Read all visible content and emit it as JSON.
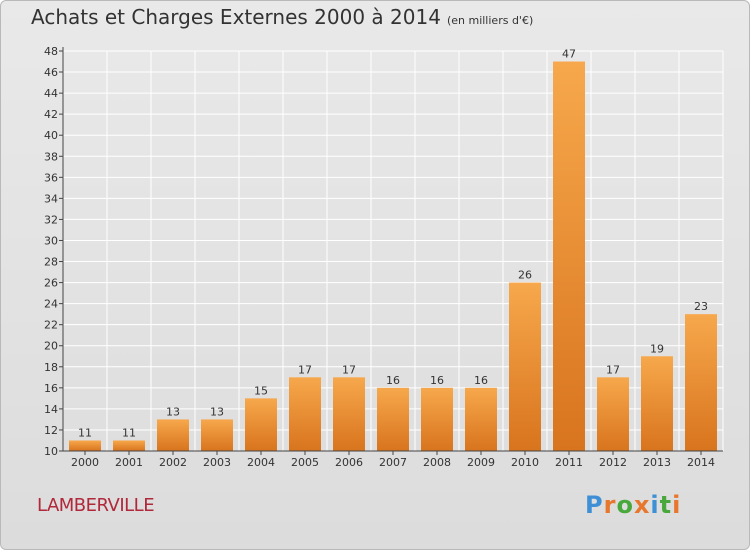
{
  "title": "Achats et Charges Externes 2000 à 2014",
  "subtitle": "(en milliers d'€)",
  "place": "LAMBERVILLE",
  "logo": {
    "text": "Proxiti",
    "letters": [
      "P",
      "r",
      "o",
      "x",
      "i",
      "t",
      "i"
    ],
    "colors": [
      "#3e8fd6",
      "#e8772e",
      "#49a83b",
      "#e8772e",
      "#3e8fd6",
      "#49a83b",
      "#e8772e"
    ]
  },
  "colors": {
    "bar_light": "#f7a84c",
    "bar_dark": "#d8741e",
    "grid": "#ffffff",
    "axis": "#444444"
  },
  "chart_data": {
    "type": "bar",
    "categories": [
      "2000",
      "2001",
      "2002",
      "2003",
      "2004",
      "2005",
      "2006",
      "2007",
      "2008",
      "2009",
      "2010",
      "2011",
      "2012",
      "2013",
      "2014"
    ],
    "values": [
      11,
      11,
      13,
      13,
      15,
      17,
      17,
      16,
      16,
      16,
      26,
      47,
      17,
      19,
      23
    ],
    "ylim": [
      10,
      48
    ],
    "yticks": [
      10,
      12,
      14,
      16,
      18,
      20,
      22,
      24,
      26,
      28,
      30,
      32,
      34,
      36,
      38,
      40,
      42,
      44,
      46,
      48
    ],
    "grid": true,
    "legend": "none"
  }
}
